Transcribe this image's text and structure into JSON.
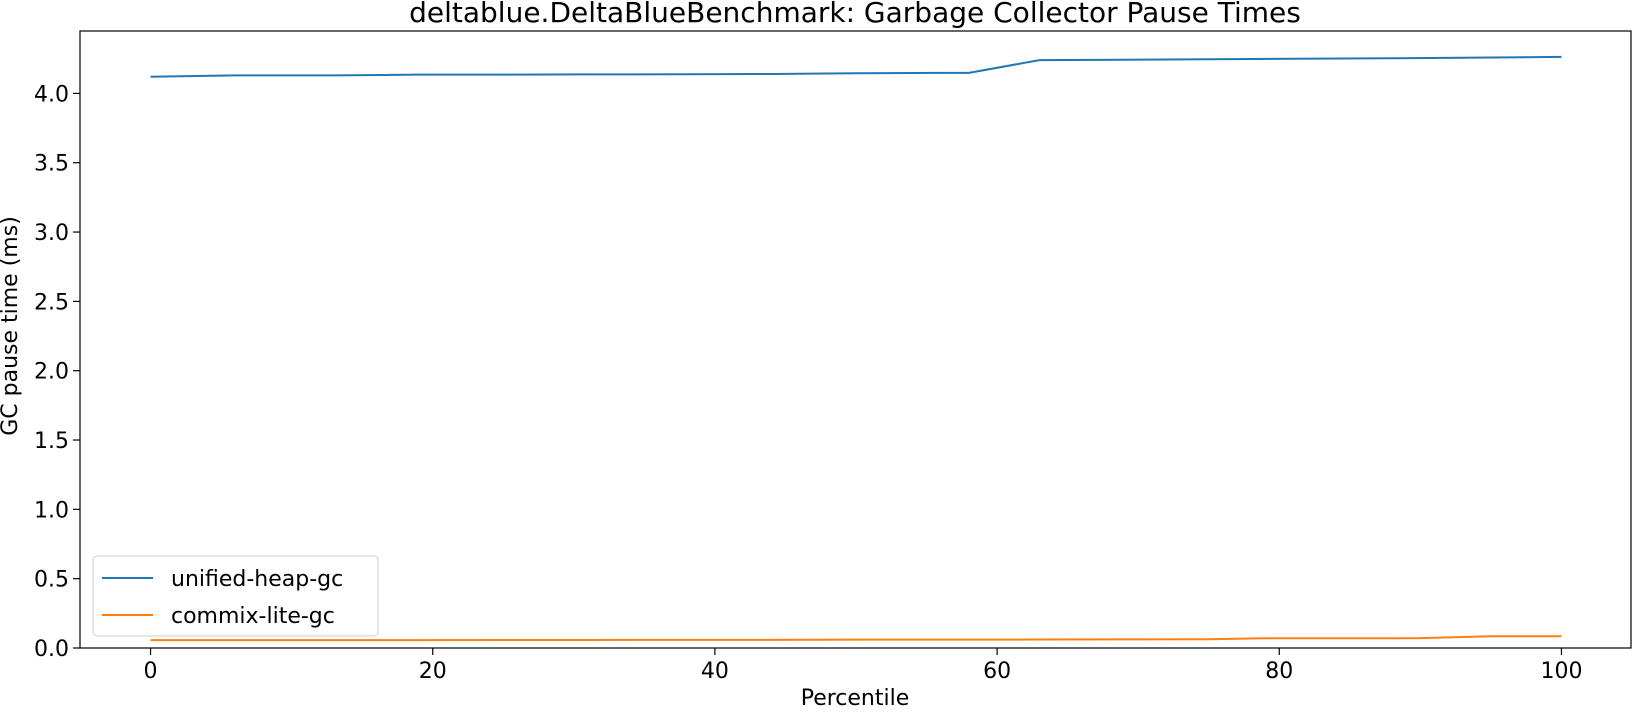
{
  "chart_data": {
    "type": "line",
    "title": "deltablue.DeltaBlueBenchmark: Garbage Collector Pause Times",
    "xlabel": "Percentile",
    "ylabel": "GC pause time (ms)",
    "xlim": [
      -5,
      105
    ],
    "ylim": [
      0,
      4.45
    ],
    "xticks": [
      0,
      20,
      40,
      60,
      80,
      100
    ],
    "xtick_labels": [
      "0",
      "20",
      "40",
      "60",
      "80",
      "100"
    ],
    "yticks": [
      0.0,
      0.5,
      1.0,
      1.5,
      2.0,
      2.5,
      3.0,
      3.5,
      4.0
    ],
    "ytick_labels": [
      "0.0",
      "0.5",
      "1.0",
      "1.5",
      "2.0",
      "2.5",
      "3.0",
      "3.5",
      "4.0"
    ],
    "grid": false,
    "legend_position": "lower-left",
    "series": [
      {
        "name": "unified-heap-gc",
        "color": "#1f77b4",
        "x": [
          0,
          6,
          13,
          19,
          25,
          31,
          38,
          44,
          50,
          56,
          58,
          63,
          69,
          75,
          81,
          88,
          94,
          100
        ],
        "y": [
          4.12,
          4.13,
          4.13,
          4.135,
          4.135,
          4.137,
          4.138,
          4.14,
          4.145,
          4.148,
          4.148,
          4.24,
          4.243,
          4.246,
          4.25,
          4.253,
          4.258,
          4.263
        ]
      },
      {
        "name": "commix-lite-gc",
        "color": "#ff7f0e",
        "x": [
          0,
          6,
          13,
          19,
          25,
          31,
          38,
          44,
          50,
          56,
          63,
          69,
          75,
          79,
          84,
          90,
          95,
          100
        ],
        "y": [
          0.057,
          0.057,
          0.057,
          0.057,
          0.058,
          0.058,
          0.059,
          0.059,
          0.06,
          0.06,
          0.061,
          0.062,
          0.063,
          0.07,
          0.07,
          0.071,
          0.085,
          0.085
        ]
      }
    ]
  }
}
